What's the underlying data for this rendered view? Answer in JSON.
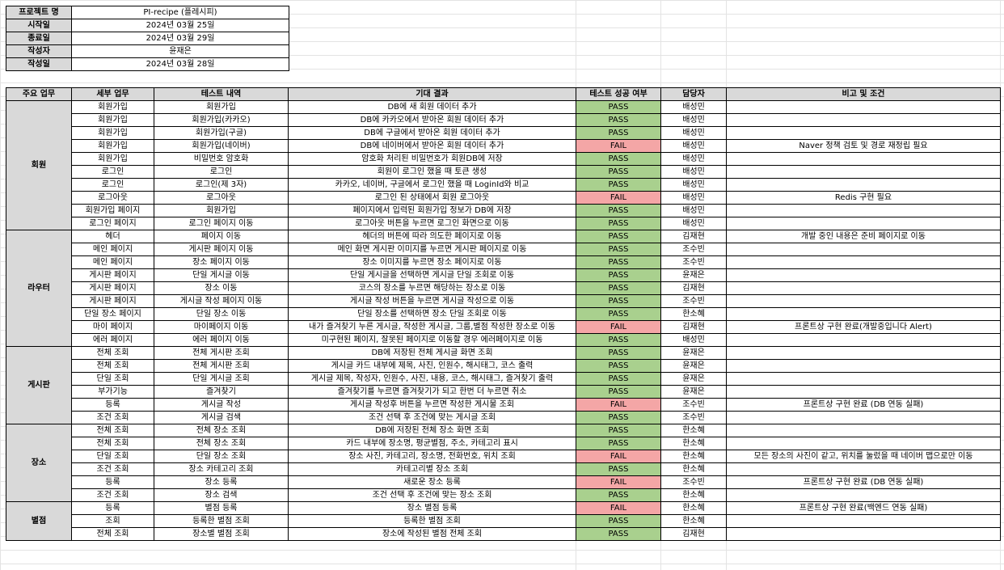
{
  "info": {
    "rows": [
      {
        "label": "프로젝트 명",
        "value": "PI-recipe (플레시피)"
      },
      {
        "label": "시작일",
        "value": "2024년 03월 25일"
      },
      {
        "label": "종료일",
        "value": "2024년 03월 29일"
      },
      {
        "label": "작성자",
        "value": "윤재은"
      },
      {
        "label": "작성일",
        "value": "2024년 03월 28일"
      }
    ]
  },
  "table": {
    "headers": [
      "주요 업무",
      "세부 업무",
      "테스트 내역",
      "기대 결과",
      "테스트 성공 여부",
      "담당자",
      "비고 및 조건"
    ],
    "groups": [
      {
        "name": "회원",
        "rows": [
          [
            "회원가입",
            "회원가입",
            "DB에 새 회원 데이터 추가",
            "PASS",
            "배성민",
            ""
          ],
          [
            "회원가입",
            "회원가입(카카오)",
            "DB에 카카오에서 받아온 회원 데이터 추가",
            "PASS",
            "배성민",
            ""
          ],
          [
            "회원가입",
            "회원가입(구글)",
            "DB에 구글에서 받아온 회원 데이터 추가",
            "PASS",
            "배성민",
            ""
          ],
          [
            "회원가입",
            "회원가입(네이버)",
            "DB에 네이버에서 받아온 회원 데이터 추가",
            "FAIL",
            "배성민",
            "Naver 정책 검토 및 경로 재정립 필요"
          ],
          [
            "회원가입",
            "비밀번호 암호화",
            "암호화 처리된 비밀번호가 회원DB에 저장",
            "PASS",
            "배성민",
            ""
          ],
          [
            "로그인",
            "로그인",
            "회원이 로그인 했을 때 토큰 생성",
            "PASS",
            "배성민",
            ""
          ],
          [
            "로그인",
            "로그인(제 3자)",
            "카카오, 네이버, 구글에서 로그인 했을 때 LoginId와 비교",
            "PASS",
            "배성민",
            ""
          ],
          [
            "로그아웃",
            "로그아웃",
            "로그인 된 상태에서 회원 로그아웃",
            "FAIL",
            "배성민",
            "Redis 구현 필요"
          ],
          [
            "회원가입 페이지",
            "회원가입",
            "페이지에서 입력된 회원가입 정보가 DB에 저장",
            "PASS",
            "배성민",
            ""
          ],
          [
            "로그인 페이지",
            "로그인 페이지 이동",
            "로그아웃 버튼을 누르면 로그인 화면으로 이동",
            "PASS",
            "배성민",
            ""
          ]
        ]
      },
      {
        "name": "라우터",
        "rows": [
          [
            "헤더",
            "페이지 이동",
            "헤더의 버튼에 따라 의도한 페이지로 이동",
            "PASS",
            "김재현",
            "개발 중인 내용은 준비 페이지로 이동"
          ],
          [
            "메인 페이지",
            "게시판 페이지 이동",
            "메인 화면 게시판 이미지를 누르면 게시판 페이지로 이동",
            "PASS",
            "조수빈",
            ""
          ],
          [
            "메인 페이지",
            "장소 페이지 이동",
            "장소 이미지를 누르면 장소 페이지로 이동",
            "PASS",
            "조수빈",
            ""
          ],
          [
            "게시판 페이지",
            "단일 게시글 이동",
            "단일 게시글을 선택하면 게시글 단일 조회로 이동",
            "PASS",
            "윤재은",
            ""
          ],
          [
            "게시판 페이지",
            "장소 이동",
            "코스의 장소를 누르면 해당하는 장소로 이동",
            "PASS",
            "김재현",
            ""
          ],
          [
            "게시판 페이지",
            "게시글 작성 페이지 이동",
            "게시글 작성 버튼을 누르면 게시글 작성으로 이동",
            "PASS",
            "조수빈",
            ""
          ],
          [
            "단일 장소 페이지",
            "단일 장소 이동",
            "단일 장소를 선택하면 장소 단일 조회로 이동",
            "PASS",
            "한소혜",
            ""
          ],
          [
            "마이 페이지",
            "마이페이지 이동",
            "내가 즐겨찾기 누른 게시글, 작성한 게시글, 그룹,별점 작성한 장소로 이동",
            "FAIL",
            "김재현",
            "프론트상 구현 완료(개발중입니다 Alert)"
          ],
          [
            "에러 페이지",
            "에러 페이지 이동",
            "미구현된 페이지, 잘못된 페이지로 이동할 경우 에러페이지로 이동",
            "PASS",
            "배성민",
            ""
          ]
        ]
      },
      {
        "name": "게시판",
        "rows": [
          [
            "전체 조회",
            "전체 게시판 조회",
            "DB에 저장된 전체 게시글 화면 조회",
            "PASS",
            "윤재은",
            ""
          ],
          [
            "전체 조회",
            "전체 게시판 조회",
            "게시글 카드 내부에 제목, 사진, 인원수, 해시태그, 코스 출력",
            "PASS",
            "윤재은",
            ""
          ],
          [
            "단일 조회",
            "단일 게시글 조회",
            "게시글 제목, 작성자, 인원수, 사진, 내용, 코스, 해시태그, 즐겨찾기 출력",
            "PASS",
            "윤재은",
            ""
          ],
          [
            "부가기능",
            "즐겨찾기",
            "즐겨찾기를 누르면 즐겨찾기가 되고 한번 더 누르면 취소",
            "PASS",
            "윤재은",
            ""
          ],
          [
            "등록",
            "게시글 작성",
            "게시글 작성후 버튼을 누르면 작성한 게시물 조회",
            "FAIL",
            "조수빈",
            "프론트상 구현 완료 (DB 연동 실패)"
          ],
          [
            "조건 조회",
            "게시글 검색",
            "조건 선택 후 조건에 맞는 게시글 조회",
            "PASS",
            "조수빈",
            ""
          ]
        ]
      },
      {
        "name": "장소",
        "rows": [
          [
            "전체 조회",
            "전체 장소 조회",
            "DB에 저장된 전체 장소 화면 조회",
            "PASS",
            "한소혜",
            ""
          ],
          [
            "전체 조회",
            "전체 장소 조회",
            "카드 내부에 장소명, 평균별점, 주소, 카테고리 표시",
            "PASS",
            "한소혜",
            ""
          ],
          [
            "단일 조회",
            "단일 장소 조회",
            "장소 사진, 카테고리, 장소명, 전화번호, 위치 조회",
            "FAIL",
            "한소혜",
            "모든 장소의 사진이 같고, 위치를 눌렀을 때 네이버 맵으로만 이동"
          ],
          [
            "조건 조회",
            "장소 카테고리 조회",
            "카테고리별 장소 조회",
            "PASS",
            "한소혜",
            ""
          ],
          [
            "등록",
            "장소 등록",
            "새로운 장소 등록",
            "FAIL",
            "조수빈",
            "프론트상 구현 완료 (DB 연동 실패)"
          ],
          [
            "조건 조회",
            "장소 검색",
            "조건 선택 후 조건에 맞는 장소 조회",
            "PASS",
            "한소혜",
            ""
          ]
        ]
      },
      {
        "name": "별점",
        "rows": [
          [
            "등록",
            "별점 등록",
            "장소 별점 등록",
            "FAIL",
            "한소혜",
            "프론트상 구현 완료(백엔드 연동 실패)"
          ],
          [
            "조회",
            "등록한 별점 조회",
            "등록한 별점 조회",
            "PASS",
            "한소혜",
            ""
          ],
          [
            "전체 조회",
            "장소별 별점 조회",
            "장소에 작성된 별점 전체 조회",
            "PASS",
            "김재현",
            ""
          ]
        ]
      }
    ]
  }
}
